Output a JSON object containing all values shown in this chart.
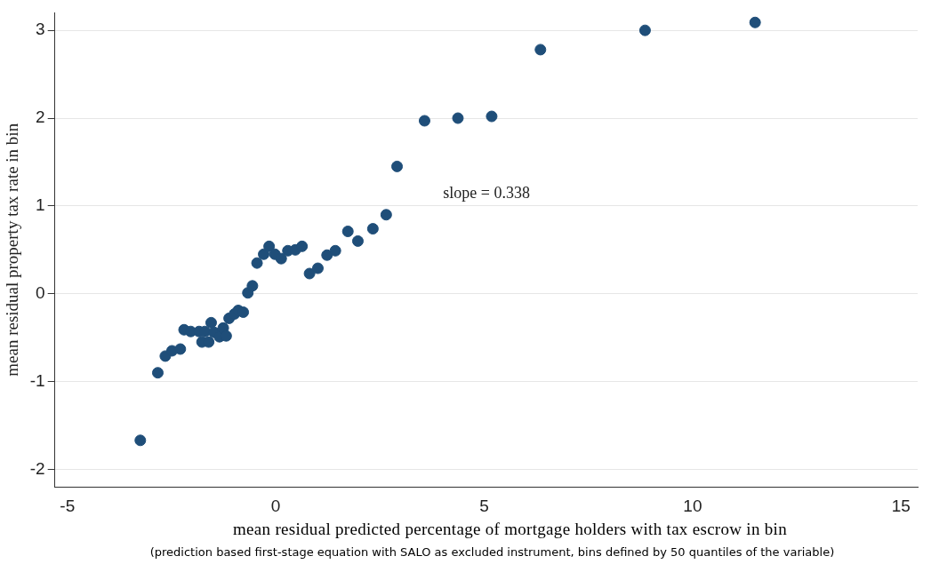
{
  "chart_data": {
    "type": "scatter",
    "xlabel": "mean residual predicted percentage of mortgage holders with tax escrow in bin",
    "ylabel": "mean residual property tax rate in bin",
    "annotations": [
      "slope = 0.338",
      "(prediction based first-stage equation with SALO as excluded instrument, bins defined by 50 quantiles of the variable)"
    ],
    "series": [
      {
        "color": "#1f4e79",
        "x": [
          -3.25,
          -2.83,
          -2.65,
          -2.49,
          -2.29,
          -2.2,
          -2.04,
          -1.84,
          -1.77,
          -1.61,
          -1.7,
          -1.55,
          -1.48,
          -1.35,
          -1.26,
          -1.19,
          -1.12,
          -0.99,
          -0.9,
          -0.78,
          -0.67,
          -0.56,
          -0.45,
          -0.29,
          -0.16,
          -0.02,
          0.13,
          0.29,
          0.47,
          0.63,
          0.81,
          1.01,
          1.23,
          1.43,
          1.73,
          1.97,
          2.33,
          2.65,
          2.91,
          3.57,
          4.37,
          5.18,
          6.35,
          8.86,
          11.5
        ],
        "values": [
          -1.67,
          -0.9,
          -0.71,
          -0.65,
          -0.63,
          -0.41,
          -0.43,
          -0.43,
          -0.55,
          -0.55,
          -0.43,
          -0.33,
          -0.44,
          -0.49,
          -0.39,
          -0.48,
          -0.28,
          -0.23,
          -0.19,
          -0.21,
          0.01,
          0.09,
          0.35,
          0.45,
          0.54,
          0.45,
          0.4,
          0.49,
          0.5,
          0.54,
          0.23,
          0.29,
          0.44,
          0.49,
          0.71,
          0.6,
          0.74,
          0.9,
          1.45,
          1.97,
          2.0,
          2.02,
          2.78,
          3.0,
          3.09
        ]
      }
    ],
    "xlim": [
      -5.3,
      15.4
    ],
    "ylim": [
      -2.2,
      3.2
    ],
    "xticks": [
      -5,
      0,
      5,
      10,
      15
    ],
    "yticks": [
      -2,
      -1,
      0,
      1,
      2,
      3
    ],
    "grid": "y",
    "marker": "circle",
    "legend": false
  }
}
